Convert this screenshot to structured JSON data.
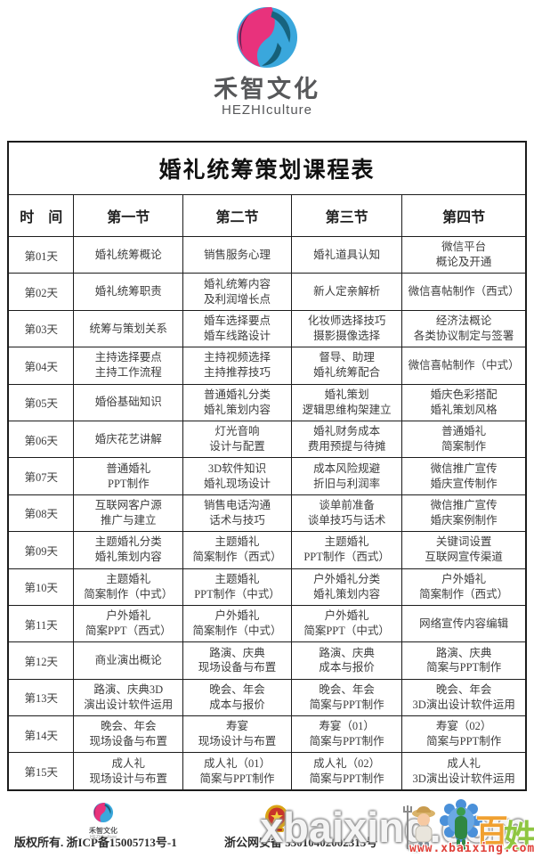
{
  "brand": {
    "name_cn": "禾智文化",
    "name_en": "HEZHIculture",
    "logo_icon": "hezhi-swirl-logo"
  },
  "table": {
    "title": "婚礼统筹策划课程表",
    "headers": [
      "时　间",
      "第一节",
      "第二节",
      "第三节",
      "第四节"
    ],
    "rows": [
      {
        "day": "第01天",
        "cells": [
          "婚礼统筹概论",
          "销售服务心理",
          "婚礼道具认知",
          "微信平台\n概论及开通"
        ]
      },
      {
        "day": "第02天",
        "cells": [
          "婚礼统筹职责",
          "婚礼统筹内容\n及利润增长点",
          "新人定亲解析",
          "微信喜帖制作（西式）"
        ]
      },
      {
        "day": "第03天",
        "cells": [
          "统筹与策划关系",
          "婚车选择要点\n婚车线路设计",
          "化妆师选择技巧\n摄影摄像选择",
          "经济法概论\n各类协议制定与签署"
        ]
      },
      {
        "day": "第04天",
        "cells": [
          "主持选择要点\n主持工作流程",
          "主持视频选择\n主持推荐技巧",
          "督导、助理\n婚礼统筹配合",
          "微信喜帖制作（中式）"
        ]
      },
      {
        "day": "第05天",
        "cells": [
          "婚俗基础知识",
          "普通婚礼分类\n婚礼策划内容",
          "婚礼策划\n逻辑思维构架建立",
          "婚庆色彩搭配\n婚礼策划风格"
        ]
      },
      {
        "day": "第06天",
        "cells": [
          "婚庆花艺讲解",
          "灯光音响\n设计与配置",
          "婚礼财务成本\n费用预提与待摊",
          "普通婚礼\n简案制作"
        ]
      },
      {
        "day": "第07天",
        "cells": [
          "普通婚礼\nPPT制作",
          "3D软件知识\n婚礼现场设计",
          "成本风险规避\n折旧与利润率",
          "微信推广宣传\n婚庆宣传制作"
        ]
      },
      {
        "day": "第08天",
        "cells": [
          "互联网客户源\n推广与建立",
          "销售电话沟通\n话术与技巧",
          "谈单前准备\n谈单技巧与话术",
          "微信推广宣传\n婚庆案例制作"
        ]
      },
      {
        "day": "第09天",
        "cells": [
          "主题婚礼分类\n婚礼策划内容",
          "主题婚礼\n简案制作（西式）",
          "主题婚礼\nPPT制作（西式）",
          "关键词设置\n互联网宣传渠道"
        ]
      },
      {
        "day": "第10天",
        "cells": [
          "主题婚礼\n简案制作（中式）",
          "主题婚礼\nPPT制作（中式）",
          "户外婚礼分类\n婚礼策划内容",
          "户外婚礼\n简案制作（西式）"
        ]
      },
      {
        "day": "第11天",
        "cells": [
          "户外婚礼\n简案PPT（西式）",
          "户外婚礼\n简案制作（中式）",
          "户外婚礼\n简案PPT（中式）",
          "网络宣传内容编辑"
        ]
      },
      {
        "day": "第12天",
        "cells": [
          "商业演出概论",
          "路演、庆典\n现场设备与布置",
          "路演、庆典\n成本与报价",
          "路演、庆典\n简案与PPT制作"
        ]
      },
      {
        "day": "第13天",
        "cells": [
          "路演、庆典3D\n演出设计软件运用",
          "晚会、年会\n成本与报价",
          "晚会、年会\n简案与PPT制作",
          "晚会、年会\n3D演出设计软件运用"
        ]
      },
      {
        "day": "第14天",
        "cells": [
          "晚会、年会\n现场设备与布置",
          "寿宴\n现场设计与布置",
          "寿宴（01）\n简案与PPT制作",
          "寿宴（02）\n简案与PPT制作"
        ]
      },
      {
        "day": "第15天",
        "cells": [
          "成人礼\n现场设计与布置",
          "成人礼（01）\n简案与PPT制作",
          "成人礼（02）\n简案与PPT制作",
          "成人礼\n3D演出设计软件运用"
        ]
      }
    ]
  },
  "footer": {
    "mini_brand_cn": "禾智文化",
    "mini_brand_en": "HEZHIculture",
    "copyright": "版权所有. 浙ICP备15005713号-1",
    "security": "浙公网安备 33010402002313号",
    "badge_icon": "police-badge-icon",
    "mascot_bai": "百",
    "mascot_xing": "姓"
  },
  "watermark": {
    "main": "xbaixing.com",
    "url": "www.xbaixing.com"
  },
  "colors": {
    "logo_pink": "#e8327c",
    "logo_blue": "#3aa7dc",
    "logo_purple": "#5a2152",
    "logo_teal": "#17647f",
    "brand_text": "#57585a",
    "table_border": "#1c1c1c",
    "watermark_red": "#e04038"
  }
}
